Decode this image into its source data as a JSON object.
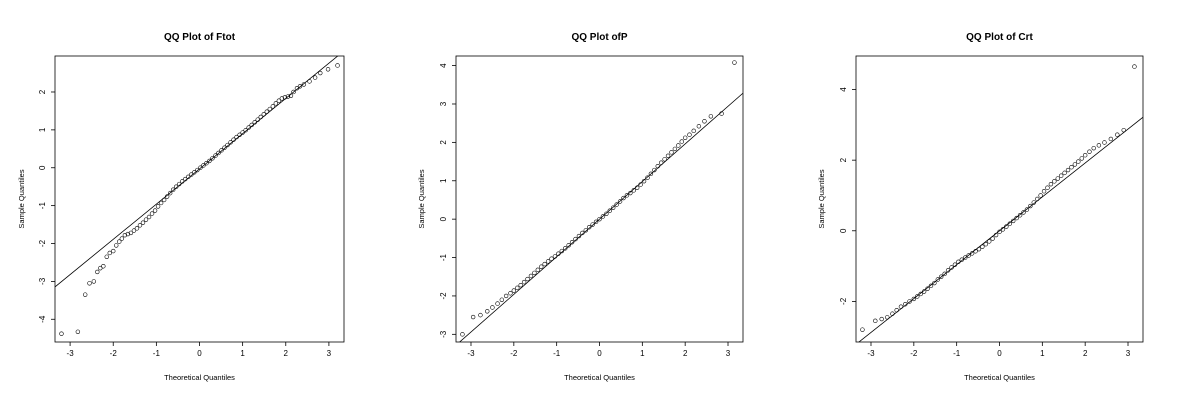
{
  "chart_data": [
    {
      "type": "scatter",
      "subtype": "qq-plot",
      "title": "QQ Plot of Ftot",
      "xlabel": "Theoretical Quantiles",
      "ylabel": "Sample Quantiles",
      "xlim": [
        -3.35,
        3.35
      ],
      "ylim": [
        -4.6,
        2.95
      ],
      "xticks": [
        -3,
        -2,
        -1,
        0,
        1,
        2,
        3
      ],
      "yticks": [
        -4,
        -3,
        -2,
        -1,
        0,
        1,
        2
      ],
      "xtick_labels": [
        "-3",
        "-2",
        "-1",
        "0",
        "1",
        "2",
        "3"
      ],
      "ytick_labels": [
        "-4",
        "-3",
        "-2",
        "-1",
        "0",
        "1",
        "2"
      ],
      "grid": false,
      "reference_line": {
        "slope": 0.93,
        "intercept": -0.03
      },
      "points": [
        [
          -3.2,
          -4.38
        ],
        [
          -2.82,
          -4.33
        ],
        [
          -2.65,
          -3.35
        ],
        [
          -2.55,
          -3.05
        ],
        [
          -2.45,
          -3.0
        ],
        [
          -2.37,
          -2.75
        ],
        [
          -2.3,
          -2.65
        ],
        [
          -2.23,
          -2.6
        ],
        [
          -2.15,
          -2.35
        ],
        [
          -2.08,
          -2.25
        ],
        [
          -2.0,
          -2.2
        ],
        [
          -1.93,
          -2.05
        ],
        [
          -1.86,
          -1.95
        ],
        [
          -1.8,
          -1.87
        ],
        [
          -1.73,
          -1.78
        ],
        [
          -1.66,
          -1.75
        ],
        [
          -1.59,
          -1.72
        ],
        [
          -1.52,
          -1.66
        ],
        [
          -1.45,
          -1.6
        ],
        [
          -1.38,
          -1.52
        ],
        [
          -1.31,
          -1.45
        ],
        [
          -1.24,
          -1.37
        ],
        [
          -1.17,
          -1.3
        ],
        [
          -1.1,
          -1.21
        ],
        [
          -1.03,
          -1.13
        ],
        [
          -0.96,
          -1.02
        ],
        [
          -0.89,
          -0.93
        ],
        [
          -0.82,
          -0.85
        ],
        [
          -0.75,
          -0.76
        ],
        [
          -0.68,
          -0.67
        ],
        [
          -0.61,
          -0.58
        ],
        [
          -0.54,
          -0.5
        ],
        [
          -0.47,
          -0.43
        ],
        [
          -0.4,
          -0.36
        ],
        [
          -0.33,
          -0.3
        ],
        [
          -0.26,
          -0.24
        ],
        [
          -0.19,
          -0.18
        ],
        [
          -0.12,
          -0.12
        ],
        [
          -0.05,
          -0.06
        ],
        [
          0.02,
          0.0
        ],
        [
          0.09,
          0.06
        ],
        [
          0.16,
          0.12
        ],
        [
          0.23,
          0.18
        ],
        [
          0.3,
          0.25
        ],
        [
          0.37,
          0.32
        ],
        [
          0.44,
          0.39
        ],
        [
          0.51,
          0.46
        ],
        [
          0.58,
          0.53
        ],
        [
          0.65,
          0.6
        ],
        [
          0.72,
          0.67
        ],
        [
          0.79,
          0.74
        ],
        [
          0.86,
          0.81
        ],
        [
          0.93,
          0.87
        ],
        [
          1.0,
          0.93
        ],
        [
          1.07,
          0.99
        ],
        [
          1.14,
          1.06
        ],
        [
          1.21,
          1.13
        ],
        [
          1.28,
          1.2
        ],
        [
          1.35,
          1.27
        ],
        [
          1.42,
          1.34
        ],
        [
          1.49,
          1.41
        ],
        [
          1.56,
          1.48
        ],
        [
          1.63,
          1.55
        ],
        [
          1.7,
          1.62
        ],
        [
          1.77,
          1.7
        ],
        [
          1.84,
          1.77
        ],
        [
          1.91,
          1.83
        ],
        [
          1.98,
          1.86
        ],
        [
          2.05,
          1.88
        ],
        [
          2.12,
          1.9
        ],
        [
          2.18,
          2.0
        ],
        [
          2.26,
          2.1
        ],
        [
          2.33,
          2.15
        ],
        [
          2.42,
          2.2
        ],
        [
          2.55,
          2.28
        ],
        [
          2.68,
          2.38
        ],
        [
          2.8,
          2.5
        ],
        [
          2.98,
          2.6
        ],
        [
          3.2,
          2.7
        ]
      ]
    },
    {
      "type": "scatter",
      "subtype": "qq-plot",
      "title": "QQ Plot ofP",
      "xlabel": "Theoretical Quantiles",
      "ylabel": "Sample Quantiles",
      "xlim": [
        -3.35,
        3.35
      ],
      "ylim": [
        -3.2,
        4.25
      ],
      "xticks": [
        -3,
        -2,
        -1,
        0,
        1,
        2,
        3
      ],
      "yticks": [
        -3,
        -2,
        -1,
        0,
        1,
        2,
        3,
        4
      ],
      "xtick_labels": [
        "-3",
        "-2",
        "-1",
        "0",
        "1",
        "2",
        "3"
      ],
      "ytick_labels": [
        "-3",
        "-2",
        "-1",
        "0",
        "1",
        "2",
        "3",
        "4"
      ],
      "grid": false,
      "reference_line": {
        "slope": 0.98,
        "intercept": 0.0
      },
      "points": [
        [
          -3.2,
          -3.0
        ],
        [
          -2.95,
          -2.55
        ],
        [
          -2.78,
          -2.5
        ],
        [
          -2.62,
          -2.4
        ],
        [
          -2.5,
          -2.3
        ],
        [
          -2.38,
          -2.2
        ],
        [
          -2.28,
          -2.1
        ],
        [
          -2.18,
          -2.0
        ],
        [
          -2.08,
          -1.93
        ],
        [
          -2.0,
          -1.86
        ],
        [
          -1.92,
          -1.79
        ],
        [
          -1.84,
          -1.72
        ],
        [
          -1.76,
          -1.64
        ],
        [
          -1.68,
          -1.56
        ],
        [
          -1.6,
          -1.48
        ],
        [
          -1.52,
          -1.4
        ],
        [
          -1.44,
          -1.32
        ],
        [
          -1.36,
          -1.24
        ],
        [
          -1.28,
          -1.17
        ],
        [
          -1.2,
          -1.1
        ],
        [
          -1.12,
          -1.03
        ],
        [
          -1.04,
          -0.97
        ],
        [
          -0.96,
          -0.9
        ],
        [
          -0.88,
          -0.83
        ],
        [
          -0.8,
          -0.76
        ],
        [
          -0.72,
          -0.68
        ],
        [
          -0.64,
          -0.6
        ],
        [
          -0.56,
          -0.52
        ],
        [
          -0.48,
          -0.44
        ],
        [
          -0.4,
          -0.36
        ],
        [
          -0.32,
          -0.29
        ],
        [
          -0.24,
          -0.21
        ],
        [
          -0.16,
          -0.14
        ],
        [
          -0.08,
          -0.07
        ],
        [
          0.0,
          0.0
        ],
        [
          0.08,
          0.07
        ],
        [
          0.16,
          0.14
        ],
        [
          0.24,
          0.22
        ],
        [
          0.32,
          0.3
        ],
        [
          0.4,
          0.38
        ],
        [
          0.48,
          0.46
        ],
        [
          0.56,
          0.55
        ],
        [
          0.64,
          0.62
        ],
        [
          0.72,
          0.68
        ],
        [
          0.8,
          0.75
        ],
        [
          0.88,
          0.82
        ],
        [
          0.96,
          0.9
        ],
        [
          1.04,
          0.99
        ],
        [
          1.12,
          1.08
        ],
        [
          1.2,
          1.18
        ],
        [
          1.28,
          1.28
        ],
        [
          1.36,
          1.38
        ],
        [
          1.44,
          1.47
        ],
        [
          1.52,
          1.56
        ],
        [
          1.6,
          1.65
        ],
        [
          1.68,
          1.74
        ],
        [
          1.76,
          1.83
        ],
        [
          1.84,
          1.92
        ],
        [
          1.92,
          2.02
        ],
        [
          2.0,
          2.12
        ],
        [
          2.1,
          2.2
        ],
        [
          2.2,
          2.3
        ],
        [
          2.32,
          2.42
        ],
        [
          2.45,
          2.55
        ],
        [
          2.6,
          2.68
        ],
        [
          2.85,
          2.75
        ],
        [
          3.15,
          4.08
        ]
      ]
    },
    {
      "type": "scatter",
      "subtype": "qq-plot",
      "title": "QQ Plot of Crt",
      "xlabel": "Theoretical Quantiles",
      "ylabel": "Sample Quantiles",
      "xlim": [
        -3.35,
        3.35
      ],
      "ylim": [
        -3.15,
        4.95
      ],
      "xticks": [
        -3,
        -2,
        -1,
        0,
        1,
        2,
        3
      ],
      "yticks": [
        -2,
        0,
        2,
        4
      ],
      "xtick_labels": [
        "-3",
        "-2",
        "-1",
        "0",
        "1",
        "2",
        "3"
      ],
      "ytick_labels": [
        "-2",
        "0",
        "2",
        "4"
      ],
      "grid": false,
      "reference_line": {
        "slope": 0.96,
        "intercept": 0.0
      },
      "points": [
        [
          -3.2,
          -2.8
        ],
        [
          -2.9,
          -2.55
        ],
        [
          -2.75,
          -2.5
        ],
        [
          -2.62,
          -2.45
        ],
        [
          -2.5,
          -2.35
        ],
        [
          -2.4,
          -2.25
        ],
        [
          -2.3,
          -2.15
        ],
        [
          -2.2,
          -2.08
        ],
        [
          -2.1,
          -2.0
        ],
        [
          -2.0,
          -1.93
        ],
        [
          -1.92,
          -1.86
        ],
        [
          -1.84,
          -1.79
        ],
        [
          -1.76,
          -1.72
        ],
        [
          -1.68,
          -1.64
        ],
        [
          -1.6,
          -1.56
        ],
        [
          -1.52,
          -1.48
        ],
        [
          -1.44,
          -1.38
        ],
        [
          -1.36,
          -1.3
        ],
        [
          -1.28,
          -1.22
        ],
        [
          -1.2,
          -1.12
        ],
        [
          -1.12,
          -1.04
        ],
        [
          -1.04,
          -0.96
        ],
        [
          -0.96,
          -0.88
        ],
        [
          -0.88,
          -0.82
        ],
        [
          -0.8,
          -0.76
        ],
        [
          -0.72,
          -0.7
        ],
        [
          -0.64,
          -0.64
        ],
        [
          -0.56,
          -0.58
        ],
        [
          -0.48,
          -0.52
        ],
        [
          -0.4,
          -0.45
        ],
        [
          -0.32,
          -0.38
        ],
        [
          -0.24,
          -0.3
        ],
        [
          -0.16,
          -0.22
        ],
        [
          -0.08,
          -0.12
        ],
        [
          0.0,
          -0.03
        ],
        [
          0.08,
          0.04
        ],
        [
          0.16,
          0.12
        ],
        [
          0.24,
          0.2
        ],
        [
          0.32,
          0.28
        ],
        [
          0.4,
          0.36
        ],
        [
          0.48,
          0.44
        ],
        [
          0.56,
          0.52
        ],
        [
          0.64,
          0.6
        ],
        [
          0.72,
          0.7
        ],
        [
          0.8,
          0.8
        ],
        [
          0.88,
          0.9
        ],
        [
          0.96,
          1.0
        ],
        [
          1.04,
          1.12
        ],
        [
          1.12,
          1.22
        ],
        [
          1.2,
          1.32
        ],
        [
          1.28,
          1.4
        ],
        [
          1.36,
          1.48
        ],
        [
          1.44,
          1.56
        ],
        [
          1.52,
          1.64
        ],
        [
          1.6,
          1.72
        ],
        [
          1.68,
          1.8
        ],
        [
          1.76,
          1.88
        ],
        [
          1.84,
          1.96
        ],
        [
          1.92,
          2.05
        ],
        [
          2.0,
          2.14
        ],
        [
          2.1,
          2.24
        ],
        [
          2.2,
          2.34
        ],
        [
          2.32,
          2.42
        ],
        [
          2.45,
          2.5
        ],
        [
          2.6,
          2.6
        ],
        [
          2.75,
          2.72
        ],
        [
          2.9,
          2.85
        ],
        [
          3.15,
          4.65
        ]
      ]
    }
  ]
}
